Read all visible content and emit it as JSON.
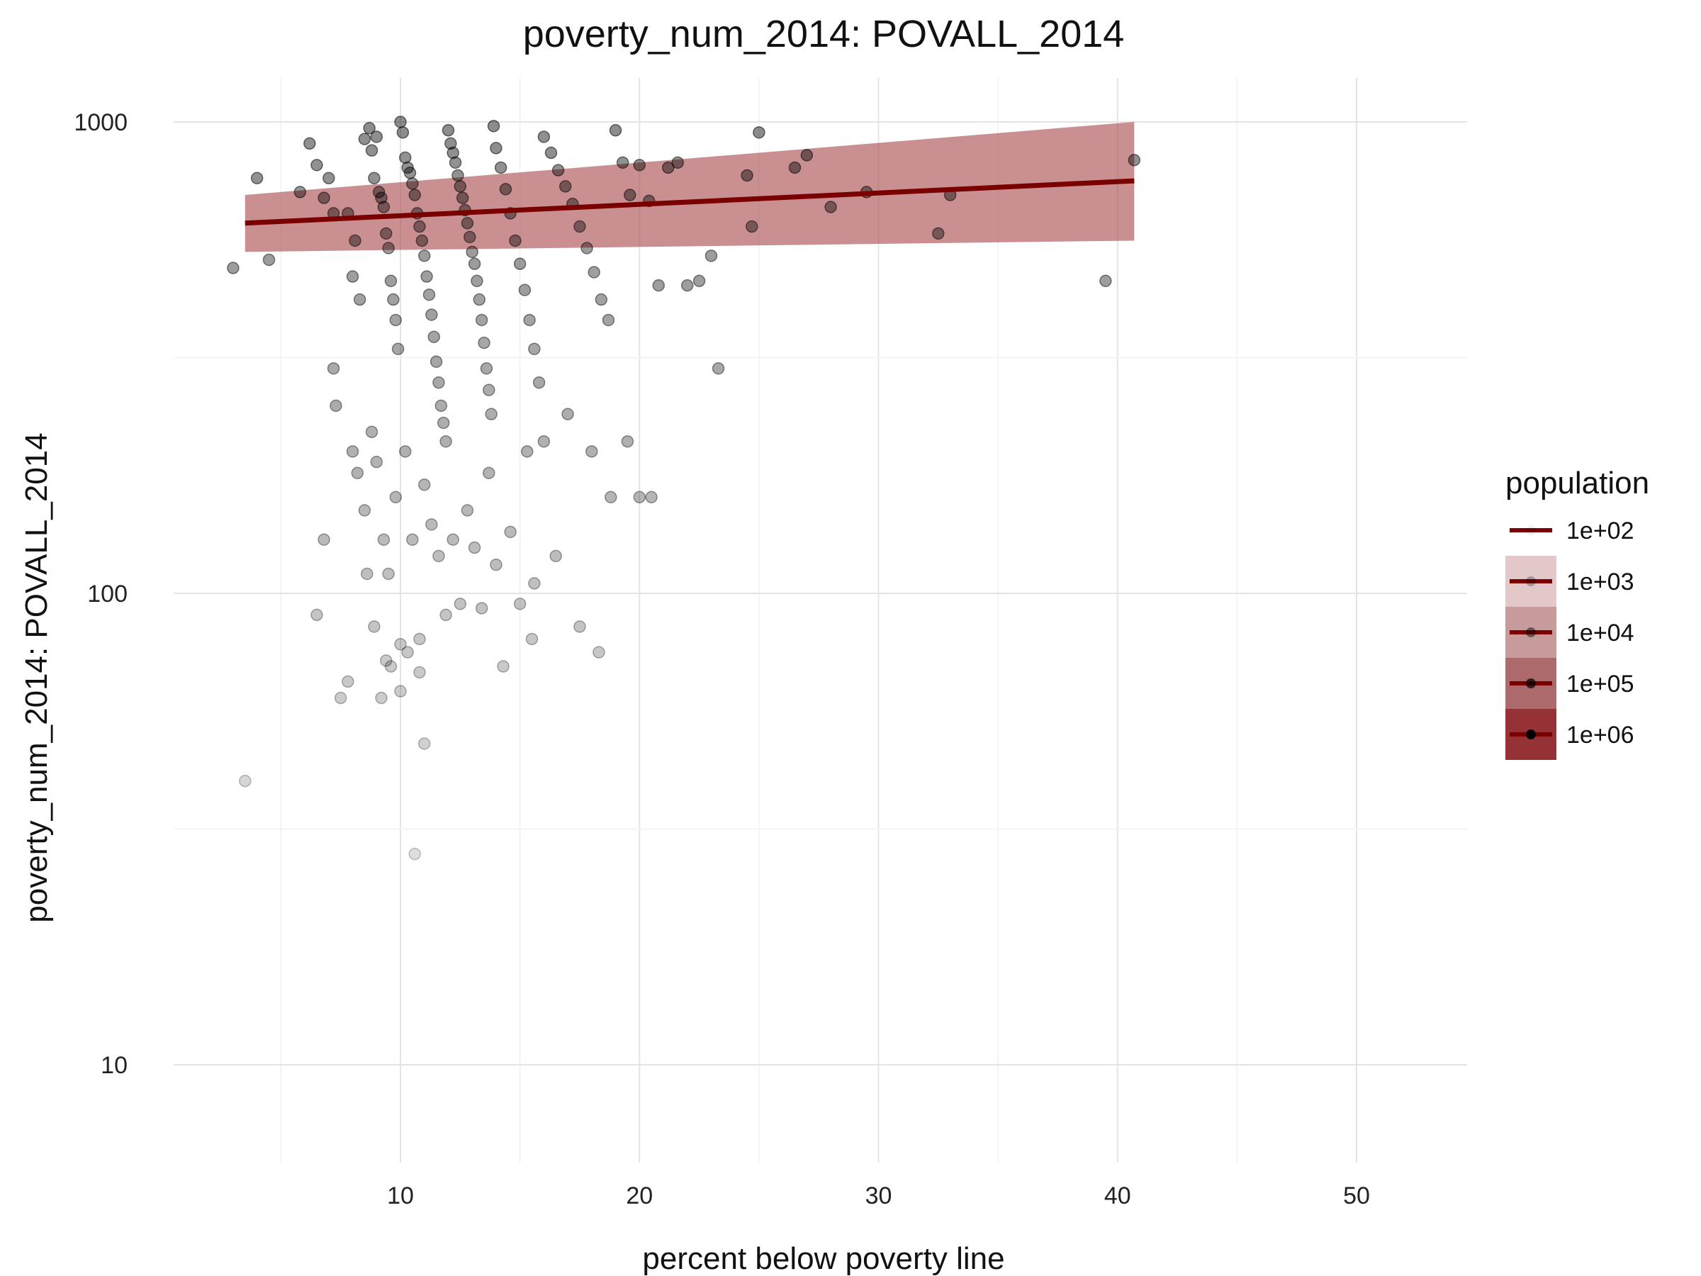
{
  "chart_data": {
    "type": "scatter",
    "title": "poverty_num_2014: POVALL_2014",
    "xlabel": "percent below poverty line",
    "ylabel": "poverty_num_2014: POVALL_2014",
    "x_ticks": [
      10,
      20,
      30,
      40,
      50
    ],
    "x_tick_labels": [
      "10",
      "20",
      "30",
      "40",
      "50"
    ],
    "y_scale": "log",
    "y_ticks": [
      10,
      100,
      1000
    ],
    "y_tick_labels": [
      "10",
      "100",
      "1000"
    ],
    "xlim": [
      0.5,
      55
    ],
    "ylim": [
      6.5,
      1250
    ],
    "grid": true,
    "legend": {
      "title": "population",
      "position": "right",
      "entries": [
        "1e+02",
        "1e+03",
        "1e+04",
        "1e+05",
        "1e+06"
      ]
    },
    "colors": {
      "trend_line": "#7a0000",
      "band": "#a84a4e",
      "points": "#000000"
    },
    "trend": {
      "x": [
        3.5,
        40.7
      ],
      "y": [
        610,
        750
      ]
    },
    "confidence_band": {
      "x": [
        3.5,
        40.7
      ],
      "lower": [
        530,
        560
      ],
      "upper": [
        700,
        1000
      ]
    },
    "points": [
      [
        3.0,
        490
      ],
      [
        3.5,
        40
      ],
      [
        4.0,
        760
      ],
      [
        4.5,
        510
      ],
      [
        5.8,
        710
      ],
      [
        6.2,
        900
      ],
      [
        6.5,
        810
      ],
      [
        6.8,
        690
      ],
      [
        7.0,
        760
      ],
      [
        7.2,
        640
      ],
      [
        6.5,
        90
      ],
      [
        6.8,
        130
      ],
      [
        7.2,
        300
      ],
      [
        7.3,
        250
      ],
      [
        7.5,
        60
      ],
      [
        7.8,
        640
      ],
      [
        8.0,
        470
      ],
      [
        8.1,
        560
      ],
      [
        8.3,
        420
      ],
      [
        8.5,
        920
      ],
      [
        8.7,
        970
      ],
      [
        8.8,
        870
      ],
      [
        8.9,
        760
      ],
      [
        9.0,
        930
      ],
      [
        9.1,
        710
      ],
      [
        9.2,
        690
      ],
      [
        9.3,
        660
      ],
      [
        9.4,
        580
      ],
      [
        9.5,
        540
      ],
      [
        9.6,
        460
      ],
      [
        9.7,
        420
      ],
      [
        9.8,
        380
      ],
      [
        9.9,
        330
      ],
      [
        10.0,
        1000
      ],
      [
        10.1,
        950
      ],
      [
        10.2,
        840
      ],
      [
        10.3,
        800
      ],
      [
        10.4,
        780
      ],
      [
        10.5,
        740
      ],
      [
        10.6,
        700
      ],
      [
        10.7,
        640
      ],
      [
        10.8,
        600
      ],
      [
        10.9,
        560
      ],
      [
        11.0,
        520
      ],
      [
        11.1,
        470
      ],
      [
        11.2,
        430
      ],
      [
        11.3,
        390
      ],
      [
        11.4,
        350
      ],
      [
        11.5,
        310
      ],
      [
        11.6,
        280
      ],
      [
        11.7,
        250
      ],
      [
        11.8,
        230
      ],
      [
        11.9,
        210
      ],
      [
        12.0,
        960
      ],
      [
        12.1,
        900
      ],
      [
        12.2,
        860
      ],
      [
        12.3,
        820
      ],
      [
        12.4,
        770
      ],
      [
        12.5,
        730
      ],
      [
        12.6,
        690
      ],
      [
        12.7,
        650
      ],
      [
        12.8,
        610
      ],
      [
        12.9,
        570
      ],
      [
        13.0,
        530
      ],
      [
        13.1,
        500
      ],
      [
        13.2,
        460
      ],
      [
        13.3,
        420
      ],
      [
        13.4,
        380
      ],
      [
        13.5,
        340
      ],
      [
        13.6,
        300
      ],
      [
        13.7,
        270
      ],
      [
        13.8,
        240
      ],
      [
        13.9,
        980
      ],
      [
        14.0,
        880
      ],
      [
        14.2,
        800
      ],
      [
        14.4,
        720
      ],
      [
        14.6,
        640
      ],
      [
        14.8,
        560
      ],
      [
        15.0,
        500
      ],
      [
        15.2,
        440
      ],
      [
        15.4,
        380
      ],
      [
        15.6,
        330
      ],
      [
        15.8,
        280
      ],
      [
        16.0,
        930
      ],
      [
        16.3,
        860
      ],
      [
        16.6,
        790
      ],
      [
        16.9,
        730
      ],
      [
        17.2,
        670
      ],
      [
        17.5,
        600
      ],
      [
        17.8,
        540
      ],
      [
        18.1,
        480
      ],
      [
        18.4,
        420
      ],
      [
        18.7,
        380
      ],
      [
        19.0,
        960
      ],
      [
        19.3,
        820
      ],
      [
        19.6,
        700
      ],
      [
        20.0,
        810
      ],
      [
        20.4,
        680
      ],
      [
        20.8,
        450
      ],
      [
        21.2,
        800
      ],
      [
        21.6,
        820
      ],
      [
        22.0,
        450
      ],
      [
        22.5,
        460
      ],
      [
        23.0,
        520
      ],
      [
        23.3,
        300
      ],
      [
        24.5,
        770
      ],
      [
        24.7,
        600
      ],
      [
        25.0,
        950
      ],
      [
        26.5,
        800
      ],
      [
        27.0,
        850
      ],
      [
        28.0,
        660
      ],
      [
        29.5,
        710
      ],
      [
        32.5,
        580
      ],
      [
        33.0,
        700
      ],
      [
        39.5,
        460
      ],
      [
        40.7,
        830
      ],
      [
        8.0,
        200
      ],
      [
        8.2,
        180
      ],
      [
        8.5,
        150
      ],
      [
        8.8,
        220
      ],
      [
        9.0,
        190
      ],
      [
        9.3,
        130
      ],
      [
        9.5,
        110
      ],
      [
        9.8,
        160
      ],
      [
        10.2,
        200
      ],
      [
        10.5,
        130
      ],
      [
        10.8,
        80
      ],
      [
        11.0,
        170
      ],
      [
        11.3,
        140
      ],
      [
        11.6,
        120
      ],
      [
        11.9,
        90
      ],
      [
        12.2,
        130
      ],
      [
        12.5,
        95
      ],
      [
        12.8,
        150
      ],
      [
        13.1,
        125
      ],
      [
        13.4,
        93
      ],
      [
        13.7,
        180
      ],
      [
        14.0,
        115
      ],
      [
        14.3,
        70
      ],
      [
        14.6,
        135
      ],
      [
        15.0,
        95
      ],
      [
        15.3,
        200
      ],
      [
        15.6,
        105
      ],
      [
        16.0,
        210
      ],
      [
        16.5,
        120
      ],
      [
        17.0,
        240
      ],
      [
        17.5,
        85
      ],
      [
        18.0,
        200
      ],
      [
        18.3,
        75
      ],
      [
        18.8,
        160
      ],
      [
        19.5,
        210
      ],
      [
        20.0,
        160
      ],
      [
        20.5,
        160
      ],
      [
        8.6,
        110
      ],
      [
        8.9,
        85
      ],
      [
        9.2,
        60
      ],
      [
        9.6,
        70
      ],
      [
        10.0,
        62
      ],
      [
        10.3,
        75
      ],
      [
        10.8,
        68
      ],
      [
        11.0,
        48
      ],
      [
        7.8,
        65
      ],
      [
        9.4,
        72
      ],
      [
        10.6,
        28
      ],
      [
        10.0,
        78
      ],
      [
        15.5,
        80
      ]
    ]
  }
}
